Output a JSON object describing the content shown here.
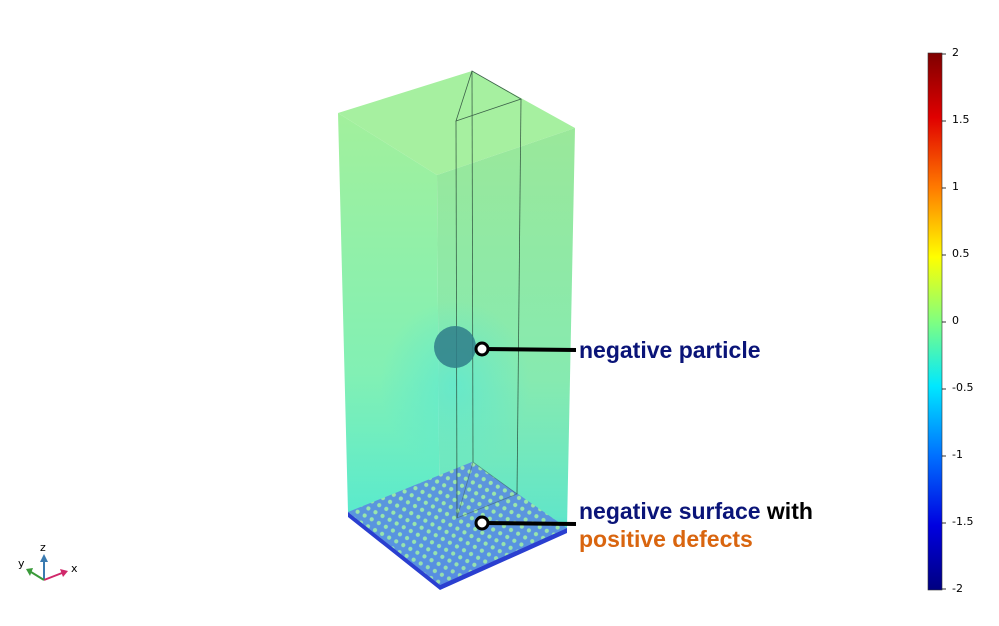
{
  "labels": {
    "particle": "negative particle",
    "surface_a": "negative surface",
    "surface_b": "with",
    "defects": "positive defects"
  },
  "colorbar": {
    "ticks": [
      "2",
      "1.5",
      "1",
      "0.5",
      "0",
      "-0.5",
      "-1",
      "-1.5",
      "-2"
    ],
    "range": [
      -2,
      2
    ],
    "colormap": "rainbow",
    "colors": [
      "#7f0000",
      "#ff0000",
      "#ff8c00",
      "#ffff00",
      "#7fff7f",
      "#00e5ff",
      "#0060ff",
      "#0000d0",
      "#000080"
    ]
  },
  "axes_triad": {
    "z": "z",
    "y": "y",
    "x": "x"
  }
}
